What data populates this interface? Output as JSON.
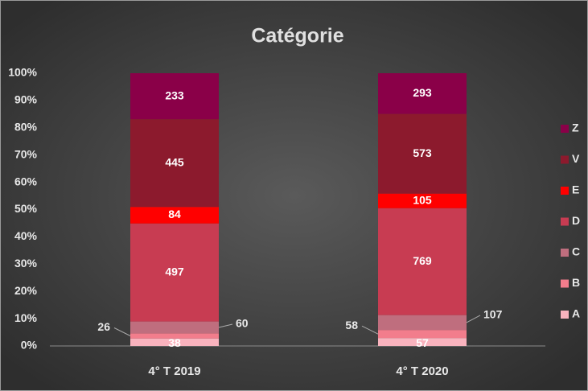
{
  "chart_data": {
    "type": "stacked_percent_bar",
    "title": "Catégorie",
    "categories": [
      "4° T 2019",
      "4° T 2020"
    ],
    "series": [
      {
        "name": "A",
        "color": "#f9b3be",
        "values": [
          38,
          57
        ]
      },
      {
        "name": "B",
        "color": "#f27d8c",
        "values": [
          26,
          58
        ]
      },
      {
        "name": "C",
        "color": "#bf6e7e",
        "values": [
          60,
          107
        ]
      },
      {
        "name": "D",
        "color": "#c83c52",
        "values": [
          497,
          769
        ]
      },
      {
        "name": "E",
        "color": "#ff0000",
        "values": [
          84,
          105
        ]
      },
      {
        "name": "V",
        "color": "#8c1a2d",
        "values": [
          445,
          573
        ]
      },
      {
        "name": "Z",
        "color": "#8a0048",
        "values": [
          233,
          293
        ]
      }
    ],
    "ylim": [
      0,
      100
    ],
    "yticks": [
      {
        "value": 0,
        "label": "0%"
      },
      {
        "value": 10,
        "label": "10%"
      },
      {
        "value": 20,
        "label": "20%"
      },
      {
        "value": 30,
        "label": "30%"
      },
      {
        "value": 40,
        "label": "40%"
      },
      {
        "value": 50,
        "label": "50%"
      },
      {
        "value": 60,
        "label": "60%"
      },
      {
        "value": 70,
        "label": "70%"
      },
      {
        "value": 80,
        "label": "80%"
      },
      {
        "value": 90,
        "label": "90%"
      },
      {
        "value": 100,
        "label": "100%"
      }
    ],
    "legend": "right"
  }
}
